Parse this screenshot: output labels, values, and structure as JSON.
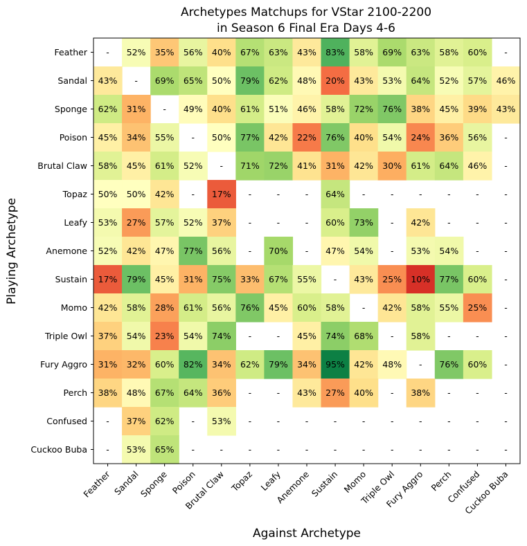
{
  "chart_data": {
    "type": "heatmap",
    "title": [
      "Archetypes Matchups for VStar 2100-2200",
      "in Season 6 Final Era Days 4-6"
    ],
    "xlabel": "Against Archetype",
    "ylabel": "Playing Archetype",
    "columns": [
      "Feather",
      "Sandal",
      "Sponge",
      "Poison",
      "Brutal Claw",
      "Topaz",
      "Leafy",
      "Anemone",
      "Sustain",
      "Momo",
      "Triple Owl",
      "Fury Aggro",
      "Perch",
      "Confused",
      "Cuckoo Buba"
    ],
    "rows": [
      "Feather",
      "Sandal",
      "Sponge",
      "Poison",
      "Brutal Claw",
      "Topaz",
      "Leafy",
      "Anemone",
      "Sustain",
      "Momo",
      "Triple Owl",
      "Fury Aggro",
      "Perch",
      "Confused",
      "Cuckoo Buba"
    ],
    "value_range": [
      0,
      100
    ],
    "missing_label": "-",
    "unit": "%",
    "values": [
      [
        null,
        52,
        35,
        56,
        40,
        67,
        63,
        43,
        83,
        58,
        69,
        63,
        58,
        60,
        null
      ],
      [
        43,
        null,
        69,
        65,
        50,
        79,
        62,
        48,
        20,
        43,
        53,
        64,
        52,
        57,
        46
      ],
      [
        62,
        31,
        null,
        49,
        40,
        61,
        51,
        46,
        58,
        72,
        76,
        38,
        45,
        39,
        43
      ],
      [
        45,
        34,
        55,
        null,
        50,
        77,
        42,
        22,
        76,
        40,
        54,
        24,
        36,
        56,
        null
      ],
      [
        58,
        45,
        61,
        52,
        null,
        71,
        72,
        41,
        31,
        42,
        30,
        61,
        64,
        46,
        null
      ],
      [
        50,
        50,
        42,
        null,
        17,
        null,
        null,
        null,
        64,
        null,
        null,
        null,
        null,
        null,
        null
      ],
      [
        53,
        27,
        57,
        52,
        37,
        null,
        null,
        null,
        60,
        73,
        null,
        42,
        null,
        null,
        null
      ],
      [
        52,
        42,
        47,
        77,
        56,
        null,
        70,
        null,
        47,
        54,
        null,
        53,
        54,
        null,
        null
      ],
      [
        17,
        79,
        45,
        31,
        75,
        33,
        67,
        55,
        null,
        43,
        25,
        10,
        77,
        60,
        null
      ],
      [
        42,
        58,
        28,
        61,
        56,
        76,
        45,
        60,
        58,
        null,
        42,
        58,
        55,
        25,
        null
      ],
      [
        37,
        54,
        23,
        54,
        74,
        null,
        null,
        45,
        74,
        68,
        null,
        58,
        null,
        null,
        null
      ],
      [
        31,
        32,
        60,
        82,
        34,
        62,
        79,
        34,
        95,
        42,
        48,
        null,
        76,
        60,
        null
      ],
      [
        38,
        48,
        67,
        64,
        36,
        null,
        null,
        43,
        27,
        40,
        null,
        38,
        null,
        null,
        null
      ],
      [
        null,
        37,
        62,
        null,
        53,
        null,
        null,
        null,
        null,
        null,
        null,
        null,
        null,
        null,
        null
      ],
      [
        null,
        53,
        65,
        null,
        null,
        null,
        null,
        null,
        null,
        null,
        null,
        null,
        null,
        null,
        null
      ]
    ]
  }
}
